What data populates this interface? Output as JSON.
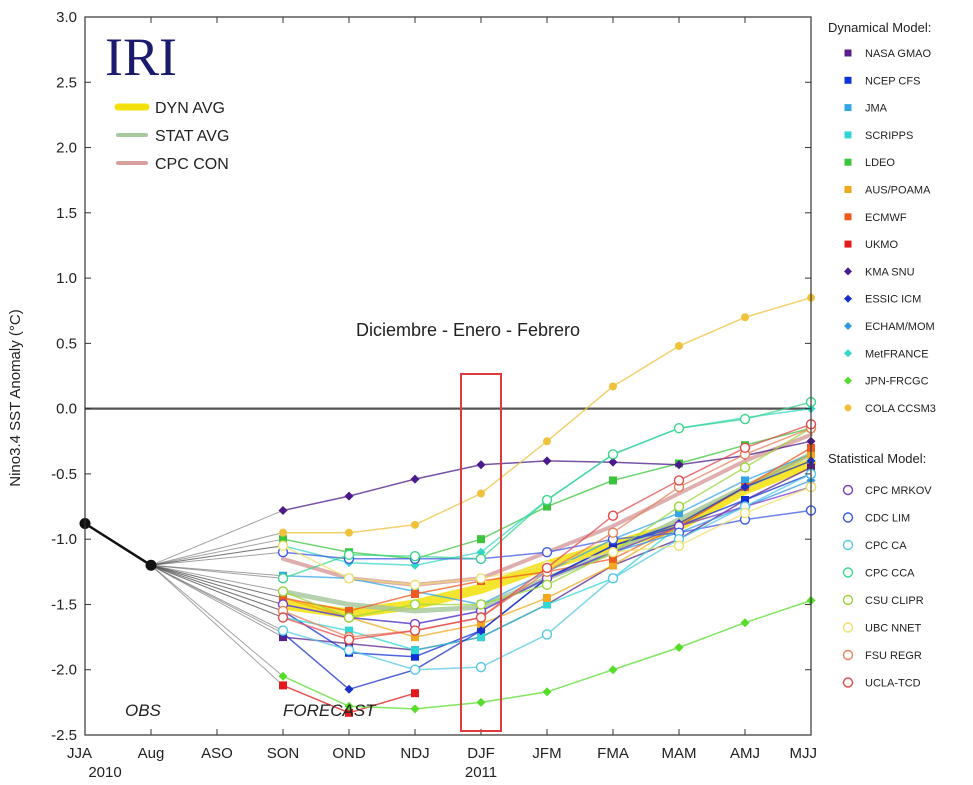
{
  "chart_data": {
    "type": "line",
    "logo": "IRI",
    "ylabel": "Nino3.4 SST Anomaly (°C)",
    "ylim": [
      -2.5,
      3.0
    ],
    "yticks": [
      -2.5,
      -2.0,
      -1.5,
      -1.0,
      -0.5,
      0.0,
      0.5,
      1.0,
      1.5,
      2.0,
      2.5,
      3.0
    ],
    "ytick_labels": [
      "-2.5",
      "-2.0",
      "-1.5",
      "-1.0",
      "-0.5",
      "0.0",
      "0.5",
      "1.0",
      "1.5",
      "2.0",
      "2.5",
      "3.0"
    ],
    "categories": [
      "JJA",
      "Aug",
      "ASO",
      "SON",
      "OND",
      "NDJ",
      "DJF",
      "JFM",
      "FMA",
      "MAM",
      "AMJ",
      "MJJ"
    ],
    "year_labels": [
      {
        "label": "2010",
        "at": 0
      },
      {
        "label": "2011",
        "at": 6
      }
    ],
    "annotations": {
      "highlight_text": "Diciembre  -  Enero  -  Febrero",
      "highlight_category": "DJF",
      "obs": "OBS",
      "forecast": "FORECAST"
    },
    "observed": {
      "x": [
        0,
        1
      ],
      "values": [
        -0.88,
        -1.2
      ]
    },
    "averages": [
      {
        "name": "DYN AVG",
        "color": "#f5e10a",
        "values": [
          -1.5,
          -1.57,
          -1.5,
          -1.38,
          -1.2,
          -1.05,
          -0.9,
          -0.62,
          -0.42
        ]
      },
      {
        "name": "STAT AVG",
        "color": "#a8c9a0",
        "values": [
          -1.4,
          -1.5,
          -1.55,
          -1.52,
          -1.3,
          -1.1,
          -0.85,
          -0.6,
          -0.35
        ]
      },
      {
        "name": "CPC CON",
        "color": "#d9a0a0",
        "values": [
          -1.15,
          -1.3,
          -1.35,
          -1.3,
          -1.1,
          -0.9,
          -0.65,
          -0.4,
          -0.2
        ]
      }
    ],
    "legend_dynamical_title": "Dynamical Model:",
    "legend_statistical_title": "Statistical Model:",
    "dynamical": [
      {
        "name": "NASA GMAO",
        "color": "#5a1f8c",
        "values": [
          -1.75,
          -1.8,
          -1.85,
          -1.75,
          -1.5,
          -1.2,
          -1.0,
          -0.7,
          -0.45
        ]
      },
      {
        "name": "NCEP CFS",
        "color": "#1030d8",
        "values": [
          -1.55,
          -1.87,
          -1.9,
          -1.7,
          -1.3,
          -1.05,
          -0.9,
          -0.7,
          -0.5
        ]
      },
      {
        "name": "JMA",
        "color": "#33a5e6",
        "values": [
          -1.28,
          -1.3,
          -1.4,
          -1.5,
          -1.25,
          -1.0,
          -0.8,
          -0.55,
          -0.35
        ]
      },
      {
        "name": "SCRIPPS",
        "color": "#33d6d6",
        "values": [
          -1.6,
          -1.7,
          -1.85,
          -1.75,
          -1.5,
          -1.3,
          -0.9,
          -0.6,
          -0.35
        ]
      },
      {
        "name": "LDEO",
        "color": "#3cc43c",
        "values": [
          -1.0,
          -1.1,
          -1.15,
          -1.0,
          -0.75,
          -0.55,
          -0.42,
          -0.28,
          -0.15
        ]
      },
      {
        "name": "AUS/POAMA",
        "color": "#f0a91e",
        "values": [
          -1.45,
          -1.6,
          -1.75,
          -1.65,
          -1.45,
          -1.2,
          -0.9,
          -0.6,
          -0.35
        ]
      },
      {
        "name": "ECMWF",
        "color": "#f05a1e",
        "values": [
          -1.45,
          -1.55,
          -1.42,
          -1.32,
          -1.25,
          -1.15,
          -0.9,
          -0.6,
          -0.3
        ]
      },
      {
        "name": "UKMO",
        "color": "#e41a1a",
        "values": [
          -2.12,
          -2.33,
          -2.18,
          null,
          null,
          null,
          null,
          null,
          null
        ]
      },
      {
        "name": "KMA SNU",
        "color": "#4a1a8a",
        "values": [
          -0.78,
          -0.67,
          -0.54,
          -0.43,
          -0.4,
          -0.41,
          -0.43,
          -0.36,
          -0.25
        ]
      },
      {
        "name": "ESSIC ICM",
        "color": "#1a30c8",
        "values": [
          -1.72,
          -2.15,
          -2.0,
          -1.7,
          -1.3,
          -1.05,
          -0.88,
          -0.6,
          -0.4
        ]
      },
      {
        "name": "ECHAM/MOM",
        "color": "#3399e6",
        "values": [
          -1.5,
          -1.6,
          -1.65,
          -1.55,
          -1.3,
          -1.1,
          -0.95,
          -0.75,
          -0.55
        ]
      },
      {
        "name": "MetFRANCE",
        "color": "#33d6c8",
        "values": [
          -1.05,
          -1.18,
          -1.2,
          -1.1,
          -0.7,
          -0.35,
          -0.15,
          -0.07,
          0.0
        ]
      },
      {
        "name": "JPN-FRCGC",
        "color": "#55dd2a",
        "values": [
          -2.05,
          -2.28,
          -2.3,
          -2.25,
          -2.17,
          -2.0,
          -1.83,
          -1.64,
          -1.47
        ]
      },
      {
        "name": "COLA CCSM3",
        "color": "#f0c23c",
        "values": [
          -0.95,
          -0.95,
          -0.89,
          -0.65,
          -0.25,
          0.17,
          0.48,
          0.7,
          0.85
        ]
      }
    ],
    "statistical": [
      {
        "name": "CPC MRKOV",
        "color": "#7a3cc8",
        "values": [
          -1.5,
          -1.6,
          -1.65,
          -1.55,
          -1.3,
          -1.1,
          -0.9,
          -0.75,
          -0.6
        ]
      },
      {
        "name": "CDC LIM",
        "color": "#3c5ae6",
        "values": [
          -1.1,
          -1.15,
          -1.15,
          -1.15,
          -1.1,
          -1.0,
          -0.95,
          -0.85,
          -0.78
        ]
      },
      {
        "name": "CPC CA",
        "color": "#55c8e6",
        "values": [
          -1.7,
          -1.85,
          -2.0,
          -1.98,
          -1.73,
          -1.3,
          -1.0,
          -0.75,
          -0.5
        ]
      },
      {
        "name": "CPC CCA",
        "color": "#3cd68c",
        "values": [
          -1.3,
          -1.12,
          -1.13,
          -1.15,
          -0.7,
          -0.35,
          -0.15,
          -0.08,
          0.05
        ]
      },
      {
        "name": "CSU CLIPR",
        "color": "#9ad63c",
        "values": [
          -1.4,
          -1.6,
          -1.5,
          -1.5,
          -1.35,
          -1.1,
          -0.75,
          -0.45,
          -0.15
        ]
      },
      {
        "name": "UBC NNET",
        "color": "#f0e06e",
        "values": [
          -1.05,
          -1.3,
          -1.35,
          -1.3,
          -1.2,
          -1.1,
          -1.05,
          -0.8,
          -0.6
        ]
      },
      {
        "name": "FSU REGR",
        "color": "#e6825a",
        "values": [
          -1.55,
          -1.75,
          -1.7,
          -1.6,
          -1.25,
          -0.95,
          -0.6,
          -0.35,
          -0.15
        ]
      },
      {
        "name": "UCLA-TCD",
        "color": "#e64a4a",
        "values": [
          -1.6,
          -1.77,
          -1.7,
          -1.6,
          -1.22,
          -0.82,
          -0.55,
          -0.3,
          -0.12
        ]
      }
    ]
  }
}
